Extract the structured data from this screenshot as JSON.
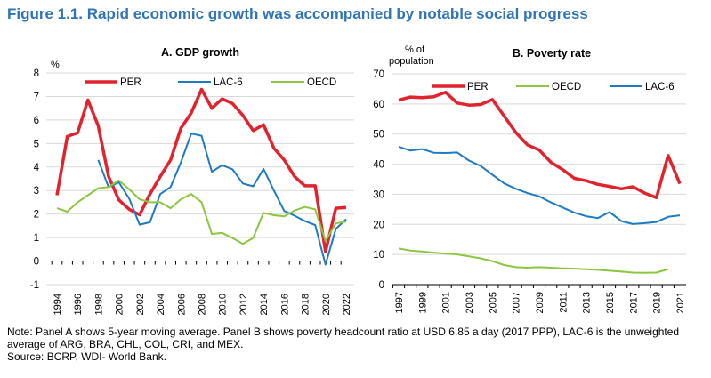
{
  "title": "Figure 1.1. Rapid economic growth was accompanied by notable social progress",
  "note": "Note: Panel A shows 5-year moving average. Panel B shows poverty headcount ratio at USD 6.85 a day (2017 PPP), LAC-6 is the unweighted average of ARG, BRA, CHL, COL, CRI, and MEX.",
  "source": "Source: BCRP, WDI- World Bank.",
  "chart_data": [
    {
      "type": "line",
      "title": "A. GDP growth",
      "ylabel": "%",
      "ylim": [
        -1,
        8
      ],
      "yticks": [
        -1,
        0,
        1,
        2,
        3,
        4,
        5,
        6,
        7,
        8
      ],
      "grid": true,
      "legend": "top",
      "x": [
        1994,
        1995,
        1996,
        1997,
        1998,
        1999,
        2000,
        2001,
        2002,
        2003,
        2004,
        2005,
        2006,
        2007,
        2008,
        2009,
        2010,
        2011,
        2012,
        2013,
        2014,
        2015,
        2016,
        2017,
        2018,
        2019,
        2020,
        2021,
        2022
      ],
      "xticklabels": [
        "1994",
        "1996",
        "1998",
        "2000",
        "2002",
        "2004",
        "2006",
        "2008",
        "2010",
        "2012",
        "2014",
        "2016",
        "2018",
        "2020",
        "2022"
      ],
      "series": [
        {
          "name": "PER",
          "color": "#e0232e",
          "values": [
            2.8,
            5.3,
            5.45,
            6.85,
            5.75,
            3.6,
            2.6,
            2.2,
            1.97,
            2.85,
            3.6,
            4.3,
            5.65,
            6.3,
            7.3,
            6.5,
            6.9,
            6.7,
            6.2,
            5.55,
            5.8,
            4.8,
            4.3,
            3.6,
            3.2,
            3.2,
            0.4,
            2.25,
            2.28
          ]
        },
        {
          "name": "LAC-6",
          "color": "#1f7ac4",
          "values": [
            null,
            null,
            null,
            null,
            4.3,
            3.15,
            3.35,
            2.65,
            1.55,
            1.65,
            2.85,
            3.15,
            4.2,
            5.42,
            5.33,
            3.8,
            4.08,
            3.9,
            3.3,
            3.18,
            3.92,
            3.0,
            2.13,
            1.93,
            1.7,
            1.53,
            -0.15,
            1.37,
            1.78
          ]
        },
        {
          "name": "OECD",
          "color": "#8cc63f",
          "values": [
            2.25,
            2.1,
            2.5,
            2.8,
            3.1,
            3.15,
            3.43,
            3.05,
            2.63,
            2.5,
            2.5,
            2.25,
            2.63,
            2.85,
            2.5,
            1.15,
            1.2,
            0.98,
            0.73,
            0.98,
            2.05,
            1.95,
            1.9,
            2.15,
            2.3,
            2.2,
            0.85,
            1.6,
            1.68
          ]
        }
      ]
    },
    {
      "type": "line",
      "title": "B. Poverty  rate",
      "ylabel": "% of population",
      "ylim": [
        0,
        70
      ],
      "yticks": [
        0,
        10,
        20,
        30,
        40,
        50,
        60,
        70
      ],
      "grid": true,
      "legend": "top",
      "x": [
        1997,
        1998,
        1999,
        2000,
        2001,
        2002,
        2003,
        2004,
        2005,
        2006,
        2007,
        2008,
        2009,
        2010,
        2011,
        2012,
        2013,
        2014,
        2015,
        2016,
        2017,
        2018,
        2019,
        2020,
        2021
      ],
      "xticklabels": [
        "1997",
        "1999",
        "2001",
        "2003",
        "2005",
        "2007",
        "2009",
        "2011",
        "2013",
        "2015",
        "2017",
        "2019",
        "2021"
      ],
      "series": [
        {
          "name": "PER",
          "color": "#e0232e",
          "values": [
            61.3,
            62.3,
            62.1,
            62.4,
            63.9,
            60.3,
            59.6,
            59.8,
            61.5,
            56,
            50.5,
            46.4,
            44.7,
            40.6,
            38.2,
            35.3,
            34.5,
            33.3,
            32.6,
            31.8,
            32.5,
            30.4,
            28.9,
            42.9,
            33.5
          ]
        },
        {
          "name": "OECD",
          "color": "#8cc63f",
          "values": [
            12,
            11.3,
            11,
            10.6,
            10.3,
            10,
            9.4,
            8.7,
            7.8,
            6.5,
            5.8,
            5.6,
            5.8,
            5.6,
            5.4,
            5.3,
            5.1,
            4.9,
            4.6,
            4.3,
            4.0,
            3.9,
            4.0,
            5.1,
            null
          ]
        },
        {
          "name": "LAC-6",
          "color": "#1f7ac4",
          "values": [
            45.8,
            44.5,
            45,
            43.8,
            43.7,
            43.9,
            41.2,
            39.4,
            36.5,
            33.6,
            31.8,
            30.4,
            29.3,
            27.3,
            25.6,
            23.9,
            22.7,
            22.1,
            24.1,
            21.1,
            20.1,
            20.4,
            20.8,
            22.5,
            23
          ]
        }
      ]
    }
  ]
}
